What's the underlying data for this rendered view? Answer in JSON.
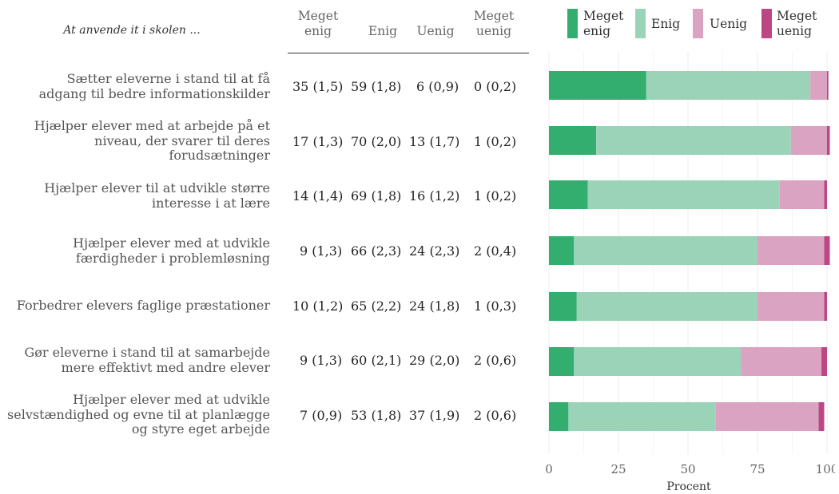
{
  "table": {
    "intro": "At anvende it i skolen ...",
    "columns": [
      {
        "line1": "Meget",
        "line2": "enig"
      },
      {
        "line1": "",
        "line2": "Enig"
      },
      {
        "line1": "",
        "line2": "Uenig"
      },
      {
        "line1": "Meget",
        "line2": "uenig"
      }
    ],
    "rows": [
      {
        "label": [
          "Sætter eleverne i stand til at få",
          "adgang til bedre informationskilder"
        ],
        "cells": [
          "35 (1,5)",
          "59 (1,8)",
          "6 (0,9)",
          "0 (0,2)"
        ]
      },
      {
        "label": [
          "Hjælper elever med at arbejde på et",
          "niveau, der svarer til deres",
          "forudsætninger"
        ],
        "cells": [
          "17 (1,3)",
          "70 (2,0)",
          "13 (1,7)",
          "1 (0,2)"
        ]
      },
      {
        "label": [
          "Hjælper elever til at udvikle større",
          "interesse i at lære"
        ],
        "cells": [
          "14 (1,4)",
          "69 (1,8)",
          "16 (1,2)",
          "1 (0,2)"
        ]
      },
      {
        "label": [
          "Hjælper elever med at udvikle",
          "færdigheder i problemløsning"
        ],
        "cells": [
          "9 (1,3)",
          "66 (2,3)",
          "24 (2,3)",
          "2 (0,4)"
        ]
      },
      {
        "label": [
          "Forbedrer elevers faglige præstationer"
        ],
        "cells": [
          "10 (1,2)",
          "65 (2,2)",
          "24 (1,8)",
          "1 (0,3)"
        ]
      },
      {
        "label": [
          "Gør eleverne i stand til at samarbejde",
          "mere effektivt med andre elever"
        ],
        "cells": [
          "9 (1,3)",
          "60 (2,1)",
          "29 (2,0)",
          "2 (0,6)"
        ]
      },
      {
        "label": [
          "Hjælper elever med at udvikle",
          "selvstændighed og evne til at planlægge",
          "og styre eget arbejde"
        ],
        "cells": [
          "7 (0,9)",
          "53 (1,8)",
          "37 (1,9)",
          "2 (0,6)"
        ]
      }
    ]
  },
  "chart_data": {
    "type": "bar",
    "orientation": "horizontal",
    "stacked": true,
    "xlabel": "Procent",
    "xlim": [
      0,
      100
    ],
    "xticks": [
      0,
      25,
      50,
      75,
      100
    ],
    "grid": true,
    "legend_position": "top",
    "categories": [
      "Sætter eleverne i stand til at få adgang til bedre informationskilder",
      "Hjælper elever med at arbejde på et niveau, der svarer til deres forudsætninger",
      "Hjælper elever til at udvikle større interesse i at lære",
      "Hjælper elever med at udvikle færdigheder i problemløsning",
      "Forbedrer elevers faglige præstationer",
      "Gør eleverne i stand til at samarbejde mere effektivt med andre elever",
      "Hjælper elever med at udvikle selvstændighed og evne til at planlægge og styre eget arbejde"
    ],
    "series": [
      {
        "name": "Meget enig",
        "legend": [
          "Meget",
          "enig"
        ],
        "color": "#33ae6e",
        "values": [
          35,
          17,
          14,
          9,
          10,
          9,
          7
        ]
      },
      {
        "name": "Enig",
        "legend": [
          "Enig"
        ],
        "color": "#9bd3b8",
        "values": [
          59,
          70,
          69,
          66,
          65,
          60,
          53
        ]
      },
      {
        "name": "Uenig",
        "legend": [
          "Uenig"
        ],
        "color": "#daa3c1",
        "values": [
          6,
          13,
          16,
          24,
          24,
          29,
          37
        ]
      },
      {
        "name": "Meget uenig",
        "legend": [
          "Meget",
          "uenig"
        ],
        "color": "#bd4784",
        "values": [
          0.5,
          1,
          1,
          2,
          1,
          2,
          2
        ]
      }
    ]
  }
}
